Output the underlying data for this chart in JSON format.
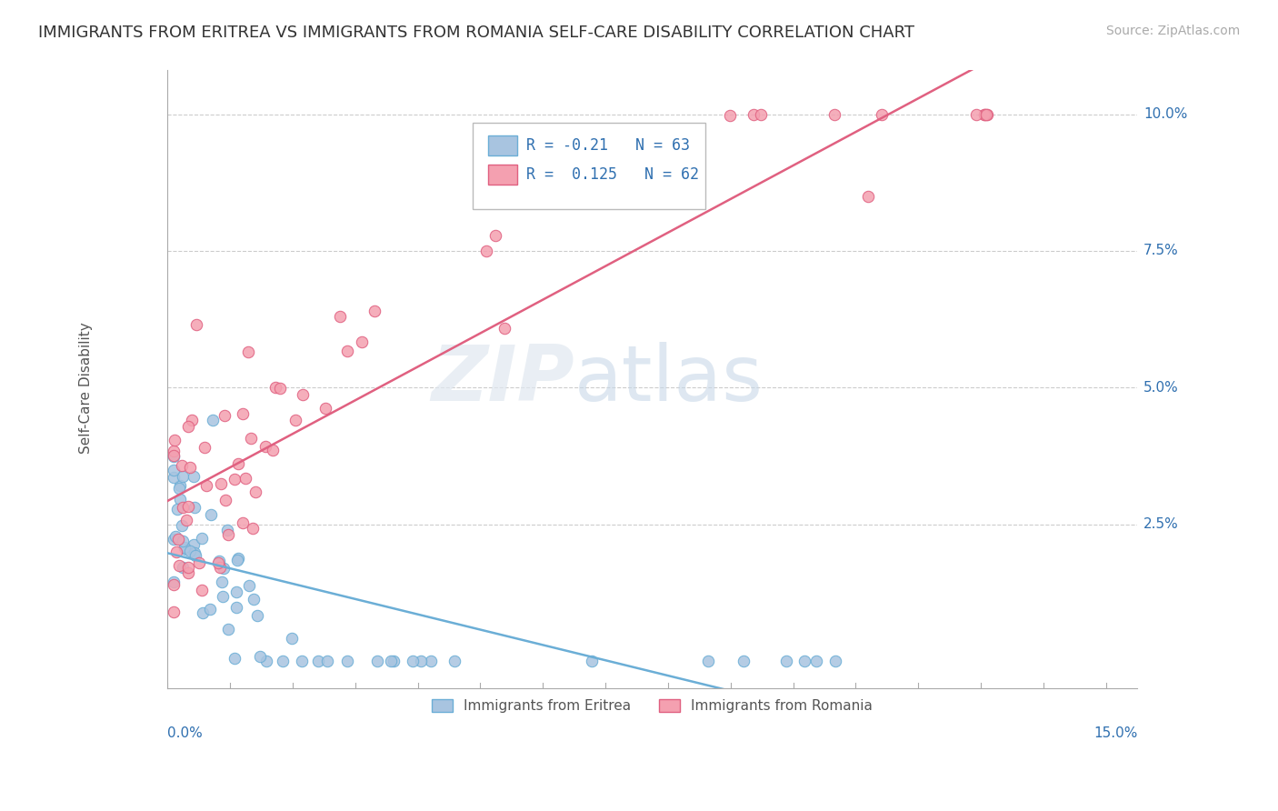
{
  "title": "IMMIGRANTS FROM ERITREA VS IMMIGRANTS FROM ROMANIA SELF-CARE DISABILITY CORRELATION CHART",
  "source": "Source: ZipAtlas.com",
  "ylabel": "Self-Care Disability",
  "ylabel_right_ticks": [
    "10.0%",
    "7.5%",
    "5.0%",
    "2.5%"
  ],
  "ylabel_right_values": [
    0.1,
    0.075,
    0.05,
    0.025
  ],
  "xmin": 0.0,
  "xmax": 0.155,
  "ymin": -0.005,
  "ymax": 0.108,
  "eritrea_R": -0.21,
  "eritrea_N": 63,
  "romania_R": 0.125,
  "romania_N": 62,
  "eritrea_color": "#a8c4e0",
  "eritrea_line_color": "#6baed6",
  "romania_color": "#f4a0b0",
  "romania_line_color": "#e06080",
  "legend_R_color": "#3070b0"
}
